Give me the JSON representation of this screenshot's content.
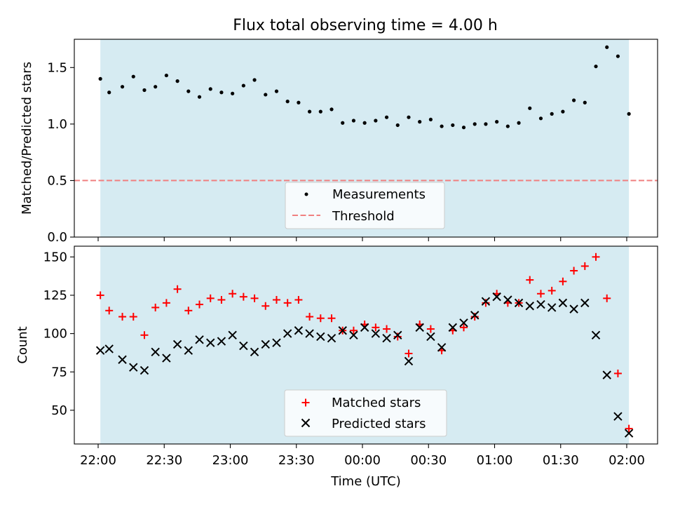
{
  "chart_data": {
    "title": "Flux total observing time = 4.00 h",
    "xlabel": "Time (UTC)",
    "x_ticks": [
      "22:00",
      "22:30",
      "23:00",
      "23:30",
      "00:00",
      "00:30",
      "01:00",
      "01:30",
      "02:00"
    ],
    "observing_window": [
      "22:01",
      "02:01"
    ],
    "shade_color": "#add8e6",
    "panels": [
      {
        "type": "scatter",
        "ylabel": "Matched/Predicted stars",
        "ylim": [
          0,
          1.75
        ],
        "yticks": [
          "0.0",
          "0.5",
          "1.0",
          "1.5"
        ],
        "legend_placement": "lower-center",
        "series": [
          {
            "name": "Measurements",
            "marker": "dot",
            "color": "#000000",
            "x": [
              "22:01",
              "22:05",
              "22:11",
              "22:16",
              "22:21",
              "22:26",
              "22:31",
              "22:36",
              "22:41",
              "22:46",
              "22:51",
              "22:56",
              "23:01",
              "23:06",
              "23:11",
              "23:16",
              "23:21",
              "23:26",
              "23:31",
              "23:36",
              "23:41",
              "23:46",
              "23:51",
              "23:56",
              "00:01",
              "00:06",
              "00:11",
              "00:16",
              "00:21",
              "00:26",
              "00:31",
              "00:36",
              "00:41",
              "00:46",
              "00:51",
              "00:56",
              "01:01",
              "01:06",
              "01:11",
              "01:16",
              "01:21",
              "01:26",
              "01:31",
              "01:36",
              "01:41",
              "01:46",
              "01:51",
              "01:56",
              "02:01"
            ],
            "y": [
              1.4,
              1.28,
              1.33,
              1.42,
              1.3,
              1.33,
              1.43,
              1.38,
              1.29,
              1.24,
              1.31,
              1.28,
              1.27,
              1.34,
              1.39,
              1.26,
              1.29,
              1.2,
              1.19,
              1.11,
              1.11,
              1.13,
              1.01,
              1.03,
              1.01,
              1.03,
              1.06,
              0.99,
              1.06,
              1.02,
              1.04,
              0.98,
              0.99,
              0.97,
              1.0,
              1.0,
              1.02,
              0.98,
              1.01,
              1.14,
              1.05,
              1.09,
              1.11,
              1.21,
              1.19,
              1.51,
              1.68,
              1.6,
              1.09
            ]
          }
        ],
        "threshold": {
          "name": "Threshold",
          "value": 0.5,
          "color": "#f08080"
        }
      },
      {
        "type": "scatter",
        "ylabel": "Count",
        "ylim": [
          28,
          157
        ],
        "yticks": [
          "50",
          "75",
          "100",
          "125",
          "150"
        ],
        "legend_placement": "lower-center",
        "series": [
          {
            "name": "Matched stars",
            "marker": "plus",
            "color": "#ff0000",
            "x": [
              "22:01",
              "22:05",
              "22:11",
              "22:16",
              "22:21",
              "22:26",
              "22:31",
              "22:36",
              "22:41",
              "22:46",
              "22:51",
              "22:56",
              "23:01",
              "23:06",
              "23:11",
              "23:16",
              "23:21",
              "23:26",
              "23:31",
              "23:36",
              "23:41",
              "23:46",
              "23:51",
              "23:56",
              "00:01",
              "00:06",
              "00:11",
              "00:16",
              "00:21",
              "00:26",
              "00:31",
              "00:36",
              "00:41",
              "00:46",
              "00:51",
              "00:56",
              "01:01",
              "01:06",
              "01:11",
              "01:16",
              "01:21",
              "01:26",
              "01:31",
              "01:36",
              "01:41",
              "01:46",
              "01:51",
              "01:56",
              "02:01"
            ],
            "y": [
              125,
              115,
              111,
              111,
              99,
              117,
              120,
              129,
              115,
              119,
              123,
              122,
              126,
              124,
              123,
              118,
              122,
              120,
              122,
              111,
              110,
              110,
              102,
              102,
              106,
              104,
              103,
              98,
              87,
              106,
              103,
              89,
              102,
              104,
              111,
              120,
              126,
              120,
              120,
              135,
              126,
              128,
              134,
              141,
              144,
              150,
              123,
              74,
              38
            ]
          },
          {
            "name": "Predicted stars",
            "marker": "x",
            "color": "#000000",
            "x": [
              "22:01",
              "22:05",
              "22:11",
              "22:16",
              "22:21",
              "22:26",
              "22:31",
              "22:36",
              "22:41",
              "22:46",
              "22:51",
              "22:56",
              "23:01",
              "23:06",
              "23:11",
              "23:16",
              "23:21",
              "23:26",
              "23:31",
              "23:36",
              "23:41",
              "23:46",
              "23:51",
              "23:56",
              "00:01",
              "00:06",
              "00:11",
              "00:16",
              "00:21",
              "00:26",
              "00:31",
              "00:36",
              "00:41",
              "00:46",
              "00:51",
              "00:56",
              "01:01",
              "01:06",
              "01:11",
              "01:16",
              "01:21",
              "01:26",
              "01:31",
              "01:36",
              "01:41",
              "01:46",
              "01:51",
              "01:56",
              "02:01"
            ],
            "y": [
              89,
              90,
              83,
              78,
              76,
              88,
              84,
              93,
              89,
              96,
              94,
              95,
              99,
              92,
              88,
              93,
              94,
              100,
              102,
              100,
              98,
              97,
              102,
              99,
              104,
              100,
              97,
              99,
              82,
              104,
              98,
              91,
              104,
              107,
              112,
              121,
              124,
              122,
              120,
              118,
              119,
              117,
              120,
              116,
              120,
              99,
              73,
              46,
              35
            ]
          }
        ]
      }
    ]
  }
}
